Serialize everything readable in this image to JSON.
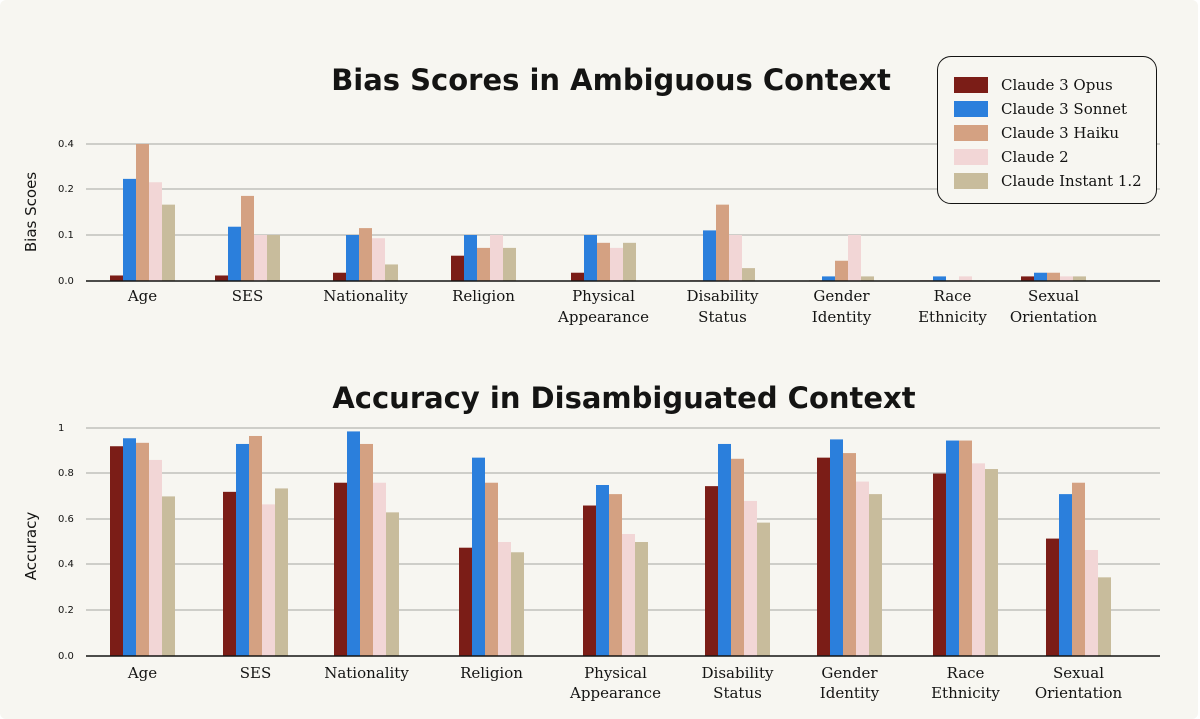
{
  "colors": {
    "Claude 3 Opus": "#7b1d17",
    "Claude 3 Sonnet": "#2b7fdc",
    "Claude 3 Haiku": "#d4a182",
    "Claude 2": "#f2d6d6",
    "Claude Instant 1.2": "#c8bc9c"
  },
  "legend": {
    "placement": "top-right",
    "items": [
      "Claude 3 Opus",
      "Claude 3 Sonnet",
      "Claude 3 Haiku",
      "Claude 2",
      "Claude Instant 1.2"
    ]
  },
  "chart_data": [
    {
      "type": "bar",
      "title": "Bias Scores in Ambiguous Context",
      "ylabel": "Bias Scoes",
      "xlabel": "",
      "yticks": [
        "0.0",
        "0.1",
        "0.2",
        "0.4"
      ],
      "grid": true,
      "categories": [
        "Age",
        "SES",
        "Nationality",
        "Religion",
        "Physical Appearance",
        "Disability Status",
        "Gender Identity",
        "Race Ethnicity",
        "Sexual Orientation"
      ],
      "series": [
        {
          "name": "Claude 3 Opus",
          "values": [
            0.012,
            0.012,
            0.018,
            0.055,
            0.018,
            0.0,
            0.0,
            0.0,
            0.01
          ]
        },
        {
          "name": "Claude 3 Sonnet",
          "values": [
            0.245,
            0.118,
            0.1,
            0.1,
            0.1,
            0.11,
            0.01,
            0.01,
            0.018
          ]
        },
        {
          "name": "Claude 3 Haiku",
          "values": [
            0.4,
            0.185,
            0.115,
            0.072,
            0.083,
            0.166,
            0.044,
            0.0,
            0.018
          ]
        },
        {
          "name": "Claude 2",
          "values": [
            0.23,
            0.1,
            0.093,
            0.1,
            0.072,
            0.1,
            0.1,
            0.01,
            0.01
          ]
        },
        {
          "name": "Claude Instant 1.2",
          "values": [
            0.166,
            0.1,
            0.036,
            0.072,
            0.083,
            0.028,
            0.01,
            0.0,
            0.01
          ]
        }
      ]
    },
    {
      "type": "bar",
      "title": "Accuracy in Disambiguated Context",
      "ylabel": "Accuracy",
      "xlabel": "",
      "ylim": [
        0,
        1
      ],
      "yticks": [
        "0.0",
        "0.2",
        "0.4",
        "0.6",
        "0.8",
        "1"
      ],
      "grid": true,
      "categories": [
        "Age",
        "SES",
        "Nationality",
        "Religion",
        "Physical Appearance",
        "Disability Status",
        "Gender Identity",
        "Race Ethnicity",
        "Sexual Orientation"
      ],
      "series": [
        {
          "name": "Claude 3 Opus",
          "values": [
            0.92,
            0.72,
            0.76,
            0.475,
            0.66,
            0.745,
            0.87,
            0.8,
            0.515
          ]
        },
        {
          "name": "Claude 3 Sonnet",
          "values": [
            0.955,
            0.93,
            0.985,
            0.87,
            0.75,
            0.93,
            0.95,
            0.945,
            0.71
          ]
        },
        {
          "name": "Claude 3 Haiku",
          "values": [
            0.935,
            0.965,
            0.93,
            0.76,
            0.71,
            0.865,
            0.89,
            0.945,
            0.76
          ]
        },
        {
          "name": "Claude 2",
          "values": [
            0.86,
            0.665,
            0.76,
            0.5,
            0.535,
            0.68,
            0.765,
            0.845,
            0.465
          ]
        },
        {
          "name": "Claude Instant 1.2",
          "values": [
            0.7,
            0.735,
            0.63,
            0.455,
            0.5,
            0.585,
            0.71,
            0.82,
            0.345
          ]
        }
      ]
    }
  ]
}
